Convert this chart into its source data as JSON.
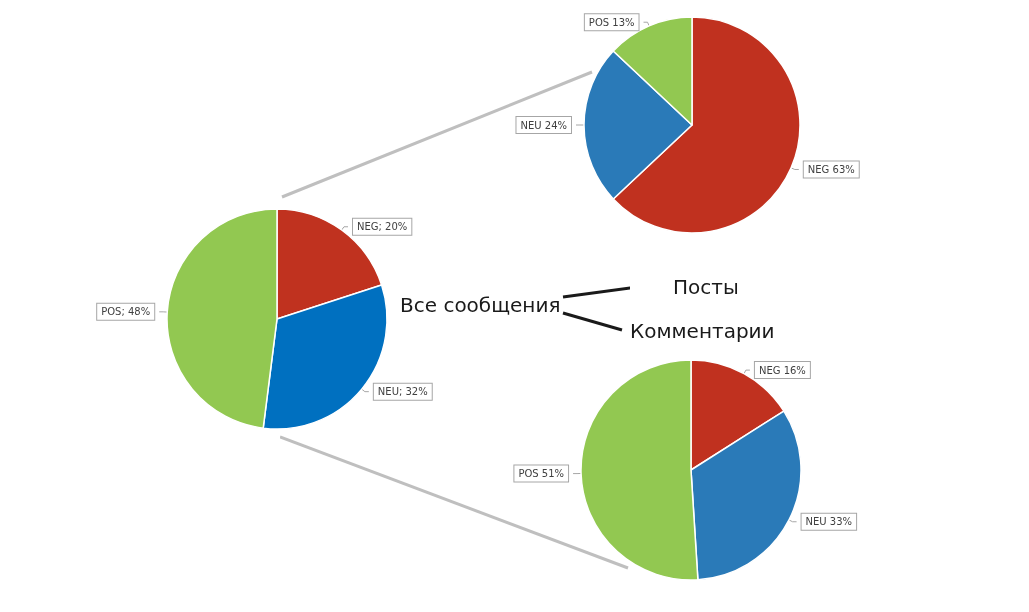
{
  "chart_data": [
    {
      "type": "pie",
      "title": "Все сообщения",
      "categories": [
        "NEG",
        "NEU",
        "POS"
      ],
      "values": [
        20,
        32,
        48
      ],
      "colors": [
        "#c0321f",
        "#0070c0",
        "#92c851"
      ],
      "value_labels": [
        "20%",
        "32%",
        "48%"
      ]
    },
    {
      "type": "pie",
      "title": "Посты",
      "categories": [
        "NEG",
        "NEU",
        "POS"
      ],
      "values": [
        63,
        24,
        13
      ],
      "colors": [
        "#c0311f",
        "#2a7ab8",
        "#92c851"
      ],
      "value_labels": [
        "63%",
        "24%",
        "13%"
      ]
    },
    {
      "type": "pie",
      "title": "Комментарии",
      "categories": [
        "NEG",
        "NEU",
        "POS"
      ],
      "values": [
        16,
        33,
        51
      ],
      "colors": [
        "#c0311f",
        "#2a7ab8",
        "#92c851"
      ],
      "value_labels": [
        "16%",
        "33%",
        "51%"
      ]
    }
  ]
}
